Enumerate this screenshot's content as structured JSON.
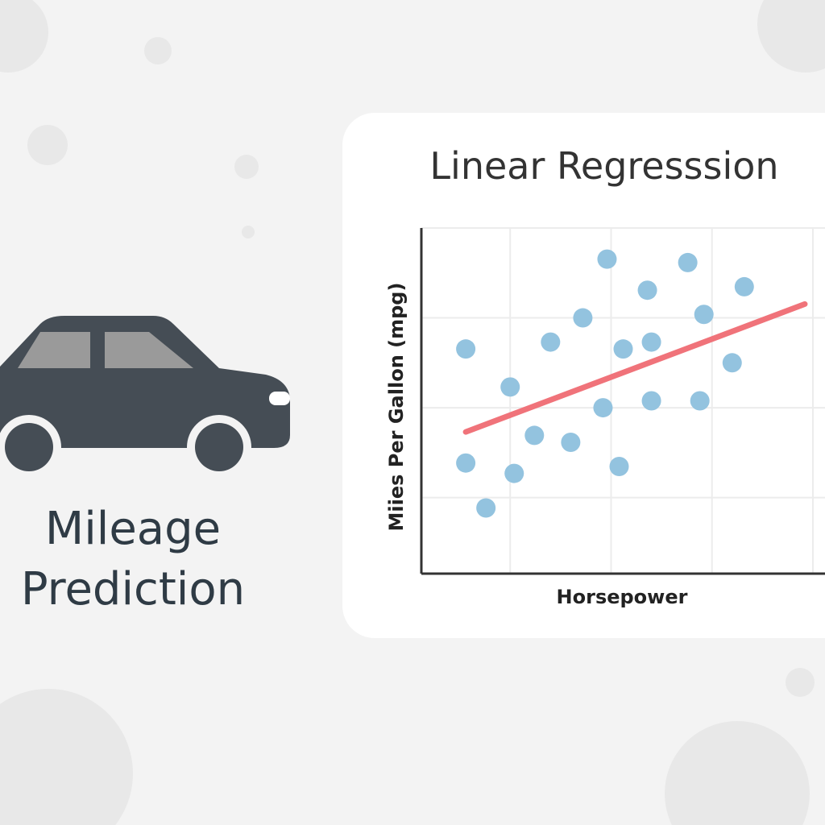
{
  "heading": {
    "line1": "Mileage",
    "line2": "Prediction"
  },
  "chart_data": {
    "type": "scatter",
    "title": "Linear Regresssion",
    "x_label": "Horsepower",
    "y_label": "Miies Per Gallon (mpg)",
    "xlim": [
      0,
      100
    ],
    "ylim": [
      0,
      100
    ],
    "xticks": [
      22,
      47,
      72,
      97
    ],
    "yticks": [
      22,
      48,
      74,
      100
    ],
    "grid": true,
    "series": [
      {
        "color": "#93c3df",
        "x": [
          11,
          22,
          11,
          16,
          23,
          28,
          32,
          37,
          40,
          46,
          45,
          49,
          50,
          56,
          57,
          57,
          66,
          70,
          69,
          77,
          80
        ],
        "values": [
          65,
          54,
          32,
          19,
          29,
          40,
          67,
          38,
          74,
          91,
          48,
          31,
          65,
          82,
          67,
          50,
          90,
          75,
          50,
          61,
          83
        ]
      }
    ],
    "trend_line": {
      "color": "#f0737a",
      "x": [
        11,
        95
      ],
      "values": [
        41,
        78
      ]
    }
  }
}
